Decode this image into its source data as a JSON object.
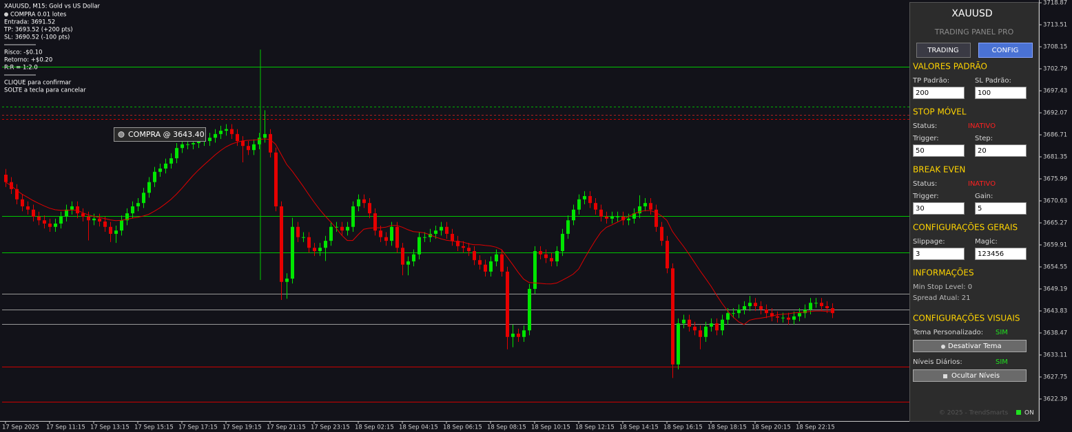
{
  "chart_data": {
    "type": "candlestick",
    "xticks": [
      {
        "value": 0,
        "label": "17 Sep 2025"
      },
      {
        "value": 8,
        "label": "17 Sep 11:15"
      },
      {
        "value": 16,
        "label": "17 Sep 13:15"
      },
      {
        "value": 24,
        "label": "17 Sep 15:15"
      },
      {
        "value": 32,
        "label": "17 Sep 17:15"
      },
      {
        "value": 40,
        "label": "17 Sep 19:15"
      },
      {
        "value": 48,
        "label": "17 Sep 21:15"
      },
      {
        "value": 56,
        "label": "17 Sep 23:15"
      },
      {
        "value": 64,
        "label": "18 Sep 02:15"
      },
      {
        "value": 72,
        "label": "18 Sep 04:15"
      },
      {
        "value": 80,
        "label": "18 Sep 06:15"
      },
      {
        "value": 88,
        "label": "18 Sep 08:15"
      },
      {
        "value": 96,
        "label": "18 Sep 10:15"
      },
      {
        "value": 104,
        "label": "18 Sep 12:15"
      },
      {
        "value": 112,
        "label": "18 Sep 14:15"
      },
      {
        "value": 120,
        "label": "18 Sep 16:15"
      },
      {
        "value": 128,
        "label": "18 Sep 18:15"
      },
      {
        "value": 136,
        "label": "18 Sep 20:15"
      },
      {
        "value": 144,
        "label": "18 Sep 22:15"
      }
    ],
    "open": [
      3677.0,
      3675.2,
      3673.5,
      3671.0,
      3669.3,
      3668.5,
      3666.8,
      3665.9,
      3665.1,
      3664.3,
      3665.1,
      3666.8,
      3668.5,
      3669.3,
      3667.6,
      3666.8,
      3665.9,
      3666.3,
      3665.6,
      3664.3,
      3662.6,
      3663.4,
      3665.9,
      3667.6,
      3669.3,
      3670.1,
      3672.6,
      3675.2,
      3677.7,
      3678.5,
      3679.7,
      3681.0,
      3683.5,
      3684.4,
      3684.4,
      3684.7,
      3685.2,
      3685.2,
      3686.0,
      3686.9,
      3687.7,
      3688.1,
      3686.9,
      3685.2,
      3684.0,
      3683.0,
      3684.4,
      3686.0,
      3686.9,
      3682.4,
      3669.3,
      3650.9,
      3651.7,
      3664.3,
      3661.8,
      3661.8,
      3659.2,
      3658.4,
      3659.2,
      3660.9,
      3664.3,
      3664.3,
      3663.4,
      3664.3,
      3669.3,
      3671.0,
      3670.1,
      3667.6,
      3663.4,
      3661.8,
      3660.9,
      3664.3,
      3659.2,
      3655.1,
      3655.9,
      3657.6,
      3661.8,
      3661.8,
      3662.6,
      3663.4,
      3664.3,
      3662.6,
      3660.9,
      3659.6,
      3659.2,
      3658.4,
      3656.2,
      3655.1,
      3653.4,
      3655.9,
      3657.6,
      3653.4,
      3637.5,
      3638.3,
      3637.5,
      3639.1,
      3649.2,
      3658.4,
      3657.6,
      3656.7,
      3655.9,
      3658.4,
      3662.6,
      3665.9,
      3668.5,
      3671.0,
      3671.8,
      3670.1,
      3668.5,
      3666.8,
      3666.3,
      3666.8,
      3666.8,
      3665.9,
      3666.3,
      3667.6,
      3669.3,
      3670.1,
      3668.5,
      3664.3,
      3660.9,
      3654.2,
      3630.8,
      3640.8,
      3641.7,
      3640.0,
      3639.1,
      3637.5,
      3640.0,
      3640.8,
      3639.1,
      3641.7,
      3643.3,
      3643.3,
      3644.2,
      3645.0,
      3645.8,
      3645.0,
      3644.2,
      3643.3,
      3642.5,
      3642.2,
      3642.2,
      3641.7,
      3642.5,
      3643.3,
      3644.2,
      3645.8,
      3645.8,
      3645.0,
      3644.5
    ],
    "high": [
      3678.4,
      3676.4,
      3674.7,
      3672.2,
      3670.5,
      3669.7,
      3668.0,
      3667.1,
      3666.3,
      3666.3,
      3668.0,
      3669.7,
      3670.5,
      3670.5,
      3668.8,
      3668.0,
      3667.5,
      3667.5,
      3666.8,
      3665.5,
      3664.6,
      3667.1,
      3668.8,
      3670.5,
      3671.3,
      3673.8,
      3676.4,
      3678.9,
      3679.7,
      3680.9,
      3682.2,
      3684.7,
      3685.6,
      3685.6,
      3685.9,
      3686.4,
      3686.4,
      3687.2,
      3688.1,
      3688.9,
      3689.3,
      3689.3,
      3688.1,
      3686.4,
      3685.2,
      3685.6,
      3687.2,
      3692.7,
      3688.1,
      3683.6,
      3670.5,
      3653.0,
      3666.5,
      3665.5,
      3663.0,
      3663.0,
      3660.4,
      3660.4,
      3662.1,
      3665.5,
      3665.5,
      3665.5,
      3665.5,
      3670.5,
      3672.2,
      3672.2,
      3671.3,
      3668.8,
      3664.6,
      3663.0,
      3665.5,
      3665.5,
      3660.4,
      3657.1,
      3658.8,
      3663.0,
      3663.0,
      3663.8,
      3664.6,
      3665.5,
      3665.5,
      3663.8,
      3662.1,
      3660.8,
      3660.4,
      3659.6,
      3657.4,
      3656.3,
      3657.1,
      3658.8,
      3658.8,
      3654.6,
      3640.5,
      3639.5,
      3640.3,
      3650.4,
      3659.6,
      3659.6,
      3658.8,
      3657.9,
      3659.6,
      3663.8,
      3667.1,
      3669.7,
      3672.2,
      3673.0,
      3673.0,
      3671.3,
      3669.7,
      3668.0,
      3668.0,
      3668.0,
      3668.0,
      3667.5,
      3668.8,
      3672.0,
      3671.3,
      3671.3,
      3669.7,
      3665.5,
      3662.1,
      3655.4,
      3642.0,
      3642.9,
      3642.9,
      3641.2,
      3640.3,
      3641.2,
      3642.0,
      3642.0,
      3642.9,
      3644.5,
      3644.5,
      3645.4,
      3646.2,
      3647.5,
      3647.0,
      3646.2,
      3645.4,
      3644.5,
      3643.7,
      3643.4,
      3643.4,
      3643.7,
      3644.5,
      3645.4,
      3647.0,
      3647.0,
      3647.0,
      3646.2,
      3645.7
    ],
    "low": [
      3674.0,
      3672.3,
      3669.8,
      3668.1,
      3667.3,
      3665.6,
      3664.7,
      3663.9,
      3663.1,
      3663.1,
      3663.9,
      3665.6,
      3667.3,
      3666.4,
      3665.6,
      3661.0,
      3664.7,
      3664.4,
      3663.1,
      3660.6,
      3660.4,
      3662.2,
      3664.7,
      3666.4,
      3668.1,
      3668.9,
      3671.4,
      3674.0,
      3676.5,
      3677.3,
      3678.5,
      3679.8,
      3682.3,
      3683.2,
      3683.2,
      3683.5,
      3684.0,
      3684.0,
      3684.8,
      3685.7,
      3686.5,
      3685.7,
      3684.0,
      3680.0,
      3681.8,
      3681.8,
      3683.2,
      3684.8,
      3681.2,
      3668.1,
      3646.5,
      3646.8,
      3650.5,
      3660.6,
      3660.6,
      3658.0,
      3657.2,
      3657.2,
      3656.0,
      3659.7,
      3663.1,
      3662.2,
      3662.2,
      3663.1,
      3668.1,
      3668.9,
      3666.4,
      3662.2,
      3660.6,
      3659.7,
      3659.7,
      3658.0,
      3652.5,
      3652.5,
      3654.7,
      3656.4,
      3660.6,
      3660.6,
      3661.4,
      3662.2,
      3661.4,
      3659.7,
      3658.4,
      3658.0,
      3657.2,
      3655.0,
      3653.9,
      3652.2,
      3652.2,
      3654.7,
      3652.2,
      3634.5,
      3635.0,
      3636.3,
      3636.3,
      3637.9,
      3648.0,
      3656.4,
      3655.5,
      3654.7,
      3654.7,
      3657.2,
      3661.4,
      3664.7,
      3667.3,
      3669.8,
      3668.9,
      3667.3,
      3665.6,
      3665.1,
      3665.1,
      3665.6,
      3664.7,
      3664.7,
      3665.1,
      3666.4,
      3668.1,
      3667.3,
      3663.1,
      3659.7,
      3653.0,
      3627.5,
      3629.6,
      3639.6,
      3638.8,
      3637.9,
      3634.5,
      3636.3,
      3638.8,
      3637.9,
      3637.9,
      3640.5,
      3642.1,
      3642.1,
      3643.0,
      3643.8,
      3643.8,
      3643.0,
      3642.1,
      3641.3,
      3641.0,
      3641.0,
      3640.5,
      3640.5,
      3641.3,
      3642.1,
      3643.0,
      3644.6,
      3643.8,
      3643.3,
      3642.1
    ],
    "close": [
      3675.2,
      3673.5,
      3671.0,
      3669.3,
      3668.5,
      3666.8,
      3665.9,
      3665.1,
      3664.3,
      3665.1,
      3666.8,
      3668.5,
      3669.3,
      3667.6,
      3666.8,
      3665.9,
      3666.3,
      3665.6,
      3664.3,
      3662.6,
      3663.4,
      3665.9,
      3667.6,
      3669.3,
      3670.1,
      3672.6,
      3675.2,
      3677.7,
      3678.5,
      3679.7,
      3681.0,
      3683.5,
      3684.4,
      3684.4,
      3684.7,
      3685.2,
      3685.2,
      3686.0,
      3686.9,
      3687.7,
      3688.1,
      3686.9,
      3685.2,
      3684.0,
      3683.0,
      3684.4,
      3686.0,
      3686.9,
      3682.4,
      3669.3,
      3650.9,
      3651.7,
      3664.3,
      3661.8,
      3661.8,
      3659.2,
      3658.4,
      3659.2,
      3660.9,
      3664.3,
      3664.3,
      3663.4,
      3664.3,
      3669.3,
      3671.0,
      3670.1,
      3667.6,
      3663.4,
      3661.8,
      3660.9,
      3664.3,
      3659.2,
      3655.1,
      3655.9,
      3657.6,
      3661.8,
      3661.8,
      3662.6,
      3663.4,
      3664.3,
      3662.6,
      3660.9,
      3659.6,
      3659.2,
      3658.4,
      3656.2,
      3655.1,
      3653.4,
      3655.9,
      3657.6,
      3653.4,
      3637.5,
      3638.3,
      3637.5,
      3639.1,
      3649.2,
      3658.4,
      3657.6,
      3656.7,
      3655.9,
      3658.4,
      3662.6,
      3665.9,
      3668.5,
      3671.0,
      3671.8,
      3670.1,
      3668.5,
      3666.8,
      3666.3,
      3666.8,
      3666.8,
      3665.9,
      3666.3,
      3667.6,
      3669.3,
      3670.1,
      3668.5,
      3664.3,
      3660.9,
      3654.2,
      3630.8,
      3640.8,
      3641.7,
      3640.0,
      3639.1,
      3637.5,
      3640.0,
      3640.8,
      3639.1,
      3641.7,
      3643.3,
      3643.3,
      3644.2,
      3645.0,
      3645.8,
      3645.0,
      3644.2,
      3643.3,
      3642.5,
      3642.2,
      3642.2,
      3641.7,
      3642.5,
      3643.3,
      3644.2,
      3645.8,
      3645.8,
      3645.0,
      3644.5,
      3643.3
    ],
    "up_color": "#00e600",
    "down_color": "#e60000",
    "ma_color": "#e00000",
    "ylim": [
      3617.03,
      3719.54
    ],
    "yticks": [
      3718.87,
      3713.51,
      3708.15,
      3702.79,
      3697.43,
      3692.07,
      3686.71,
      3681.35,
      3675.99,
      3670.63,
      3665.27,
      3659.91,
      3654.55,
      3649.19,
      3643.83,
      3638.47,
      3633.11,
      3627.75,
      3622.39
    ],
    "levels": [
      {
        "value": 3703.29,
        "color": "#00c800"
      },
      {
        "value": 3666.9,
        "color": "#00c800"
      },
      {
        "value": 3658.07,
        "color": "#00c800"
      },
      {
        "value": 3648.0,
        "color": "#9a9a9a"
      },
      {
        "value": 3644.2,
        "color": "#9a9a9a"
      },
      {
        "value": 3640.65,
        "color": "#9a9a9a"
      },
      {
        "value": 3630.26,
        "color": "#d00000"
      },
      {
        "value": 3621.72,
        "color": "#d00000"
      }
    ],
    "trade_lines": [
      {
        "value": 3693.52,
        "color": "#00b400"
      },
      {
        "value": 3691.52,
        "color": "#b02020"
      },
      {
        "value": 3690.52,
        "color": "#d00000"
      }
    ],
    "annotation": "COMPRA @ 3643.40"
  },
  "info_lines": [
    "XAUUSD, M15:  Gold vs US Dollar",
    "COMPRA 0.01 lotes",
    "Entrada: 3691.52",
    "TP: 3693.52 (+200 pts)",
    "SL: 3690.52 (-100 pts)",
    "Risco: -$0.10",
    "Retorno: +$0.20",
    "R:R = 1:2.0",
    "CLIQUE para confirmar",
    "SOLTE a tecla para cancelar"
  ],
  "panel": {
    "symbol": "XAUUSD",
    "subtitle": "TRADING PANEL PRO",
    "tabs": [
      "TRADING",
      "CONFIG"
    ],
    "defaults": {
      "title": "VALORES PADRÃO",
      "tp_label": "TP Padrão:",
      "sl_label": "SL Padrão:",
      "tp": 200,
      "sl": 100
    },
    "trailing": {
      "title": "STOP MÓVEL",
      "status_label": "Status:",
      "status": "INATIVO",
      "trigger_label": "Trigger:",
      "step_label": "Step:",
      "trigger": 50,
      "step": 20
    },
    "break_even": {
      "title": "BREAK EVEN",
      "status_label": "Status:",
      "status": "INATIVO",
      "trigger_label": "Trigger:",
      "gain_label": "Gain:",
      "trigger": 30,
      "gain": 5
    },
    "general": {
      "title": "CONFIGURAÇÕES GERAIS",
      "slippage_label": "Slippage:",
      "magic_label": "Magic:",
      "slippage": 3,
      "magic": 123456
    },
    "info": {
      "title": "INFORMAÇÕES",
      "min_stop": "Min Stop Level: 0",
      "spread": "Spread Atual: 21"
    },
    "visual": {
      "title": "CONFIGURAÇÕES VISUAIS",
      "theme_label": "Tema Personalizado:",
      "theme": "SIM",
      "theme_button": "Desativar Tema",
      "levels_label": "Níveis Diários:",
      "levels": "SIM",
      "levels_button": "Ocultar Níveis"
    },
    "footer": "© 2025 - TrendSmarts",
    "status": "ON"
  }
}
